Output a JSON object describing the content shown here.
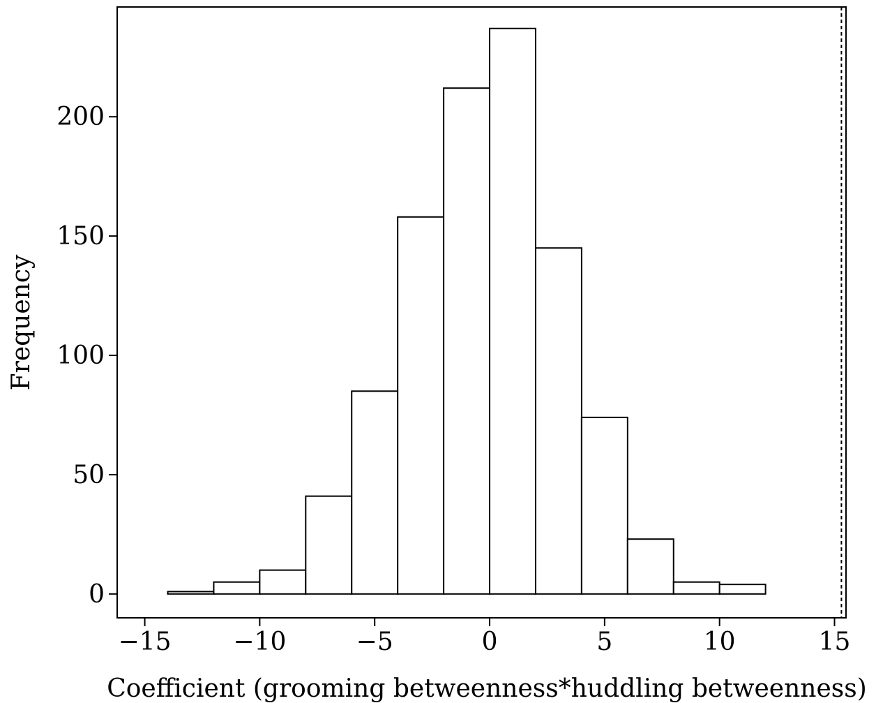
{
  "chart_data": {
    "type": "bar",
    "subtype": "histogram",
    "title": "",
    "xlabel": "Coefficient (grooming betweenness*huddling betweenness)",
    "ylabel": "Frequency",
    "xlim": [
      -16.2,
      15.5
    ],
    "ylim": [
      -10,
      246
    ],
    "x_ticks": [
      -15,
      -10,
      -5,
      0,
      5,
      10,
      15
    ],
    "x_tick_labels": [
      "−15",
      "−10",
      "−5",
      "0",
      "5",
      "10",
      "15"
    ],
    "y_ticks": [
      0,
      50,
      100,
      150,
      200
    ],
    "y_tick_labels": [
      "0",
      "50",
      "100",
      "150",
      "200"
    ],
    "bins": [
      {
        "x0": -14,
        "x1": -12,
        "count": 1
      },
      {
        "x0": -12,
        "x1": -10,
        "count": 5
      },
      {
        "x0": -10,
        "x1": -8,
        "count": 10
      },
      {
        "x0": -8,
        "x1": -6,
        "count": 41
      },
      {
        "x0": -6,
        "x1": -4,
        "count": 85
      },
      {
        "x0": -4,
        "x1": -2,
        "count": 158
      },
      {
        "x0": -2,
        "x1": 0,
        "count": 212
      },
      {
        "x0": 0,
        "x1": 2,
        "count": 237
      },
      {
        "x0": 2,
        "x1": 4,
        "count": 145
      },
      {
        "x0": 4,
        "x1": 6,
        "count": 74
      },
      {
        "x0": 6,
        "x1": 8,
        "count": 23
      },
      {
        "x0": 8,
        "x1": 10,
        "count": 5
      },
      {
        "x0": 10,
        "x1": 12,
        "count": 4
      }
    ],
    "reference_line": {
      "x": 15.3,
      "style": "dashed"
    },
    "grid": false,
    "legend": "none",
    "bar_fill": "#ffffff",
    "bar_stroke": "#000000"
  }
}
